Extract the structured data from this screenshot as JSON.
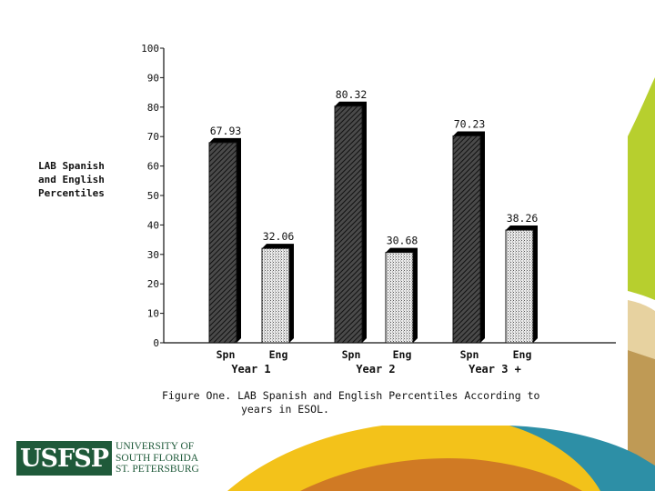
{
  "colors": {
    "decor_green": "#b7cf2e",
    "decor_yellow": "#f3c21a",
    "decor_teal": "#2d8fa6",
    "decor_orange": "#d07a24",
    "decor_tan": "#bf9a55",
    "logo_green": "#1f5a3a"
  },
  "chart_data": {
    "type": "bar",
    "title": "",
    "ylabel_lines": [
      "LAB Spanish",
      "and English",
      "Percentiles"
    ],
    "ylim": [
      0,
      100
    ],
    "yticks": [
      0,
      10,
      20,
      30,
      40,
      50,
      60,
      70,
      80,
      90,
      100
    ],
    "groups": [
      {
        "name": "Year 1",
        "bars": [
          {
            "label": "Spn",
            "value": 67.93,
            "value_label": "67.93"
          },
          {
            "label": "Eng",
            "value": 32.06,
            "value_label": "32.06"
          }
        ]
      },
      {
        "name": "Year 2",
        "bars": [
          {
            "label": "Spn",
            "value": 80.32,
            "value_label": "80.32"
          },
          {
            "label": "Eng",
            "value": 30.68,
            "value_label": "30.68"
          }
        ]
      },
      {
        "name": "Year 3 +",
        "bars": [
          {
            "label": "Spn",
            "value": 70.23,
            "value_label": "70.23"
          },
          {
            "label": "Eng",
            "value": 38.26,
            "value_label": "38.26"
          }
        ]
      }
    ],
    "grid": false,
    "legend": "none"
  },
  "caption": {
    "line1": "Figure One.  LAB Spanish and English Percentiles According to",
    "line2": "years in ESOL."
  },
  "logo": {
    "mark": "USFSP",
    "line1": "UNIVERSITY OF",
    "line2": "SOUTH FLORIDA",
    "line3": "ST. PETERSBURG"
  }
}
